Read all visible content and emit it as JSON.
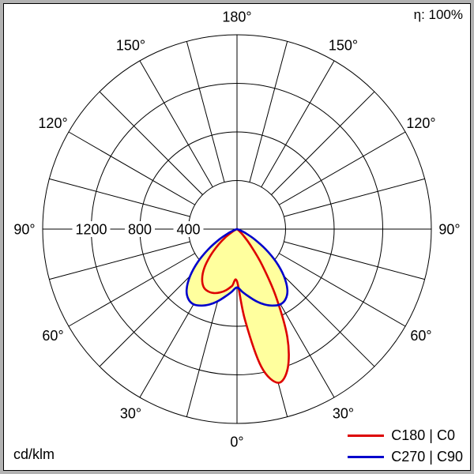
{
  "chart_data": {
    "type": "polar",
    "description": "Luminaire polar intensity distribution diagram",
    "unit": "cd/klm",
    "efficiency_label": "η: 100%",
    "angle_ticks_deg": [
      0,
      30,
      60,
      90,
      120,
      150,
      180
    ],
    "angle_tick_labels": [
      "0°",
      "30°",
      "60°",
      "90°",
      "120°",
      "150°",
      "180°"
    ],
    "spoke_step_deg": 15,
    "radial_ticks": [
      400,
      800,
      1200
    ],
    "radial_tick_labels": [
      "400",
      "800",
      "1200"
    ],
    "radial_max": 1600,
    "fill_color": "#ffff9e",
    "series": [
      {
        "name": "C180 | C0",
        "color": "#dd0000",
        "gamma_step": 5,
        "left_values": [
          430,
          470,
          510,
          540,
          560,
          565,
          550,
          500,
          420,
          310,
          200,
          110,
          45,
          12,
          0,
          0,
          0,
          0,
          0
        ],
        "right_values": [
          430,
          750,
          1150,
          1310,
          1220,
          980,
          640,
          360,
          170,
          70,
          25,
          5,
          0,
          0,
          0,
          0,
          0,
          0,
          0
        ]
      },
      {
        "name": "C270 | C90",
        "color": "#0000cc",
        "gamma_step": 5,
        "left_values": [
          480,
          520,
          565,
          615,
          660,
          695,
          715,
          700,
          645,
          545,
          420,
          285,
          165,
          75,
          25,
          5,
          0,
          0,
          0
        ],
        "right_values": [
          480,
          520,
          565,
          615,
          660,
          695,
          715,
          700,
          645,
          545,
          420,
          285,
          165,
          75,
          25,
          5,
          0,
          0,
          0
        ]
      }
    ],
    "legend": [
      {
        "label": "C180 | C0",
        "color": "#dd0000"
      },
      {
        "label": "C270 | C90",
        "color": "#0000cc"
      }
    ]
  }
}
